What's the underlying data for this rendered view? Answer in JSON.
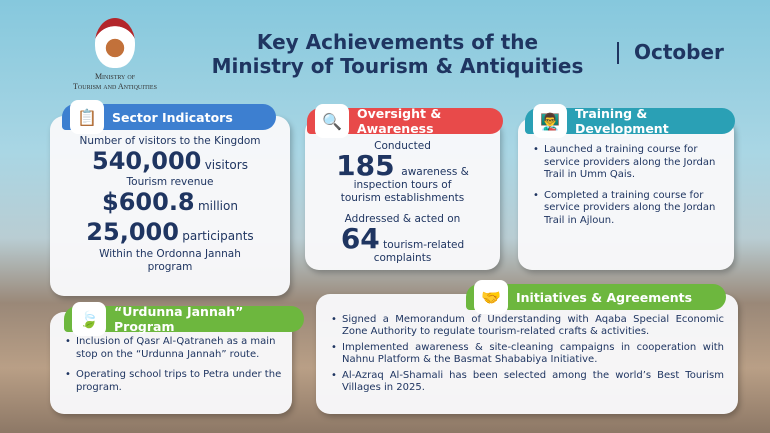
{
  "logo": {
    "line1": "Ministry of",
    "line2": "Tourism and Antiquities"
  },
  "header": {
    "title_line1": "Key Achievements of the",
    "title_line2": "Ministry of Tourism & Antiquities",
    "month": "October"
  },
  "colors": {
    "navy": "#1f3561",
    "sector": "#3d7fd0",
    "oversight": "#e84a4a",
    "training": "#2aa0b5",
    "green": "#6db73e"
  },
  "sector": {
    "title": "Sector Indicators",
    "icon": "clipboard-icon",
    "visitors_label": "Number of visitors to the Kingdom",
    "visitors_value": "540,000",
    "visitors_unit": "visitors",
    "revenue_label": "Tourism revenue",
    "revenue_value": "$600.8",
    "revenue_unit": "million",
    "participants_value": "25,000",
    "participants_unit": "participants",
    "participants_note": "Within the Ordonna Jannah program"
  },
  "oversight": {
    "title": "Oversight & Awareness",
    "icon": "inspection-icon",
    "line1": "Conducted",
    "value1": "185",
    "text1a": "awareness &",
    "text1b": "inspection tours of",
    "text1c": "tourism establishments",
    "line2": "Addressed & acted on",
    "value2": "64",
    "text2a": "tourism-related",
    "text2b": "complaints"
  },
  "training": {
    "title": "Training & Development",
    "icon": "presentation-icon",
    "items": [
      "Launched a training course for service providers along the Jordan Trail in Umm Qais.",
      "Completed a training course for service providers along the Jordan Trail in Ajloun."
    ]
  },
  "urdunna": {
    "title": "“Urdunna Jannah” Program",
    "icon": "leaf-icon",
    "items": [
      "Inclusion of Qasr Al-Qatraneh as a main stop on the “Urdunna Jannah” route.",
      "Operating school trips to Petra under the program."
    ]
  },
  "initiatives": {
    "title": "Initiatives & Agreements",
    "icon": "handshake-icon",
    "items": [
      "Signed a Memorandum of Understanding with Aqaba Special Economic Zone Authority to regulate tourism-related crafts & activities.",
      "Implemented awareness & site-cleaning campaigns in cooperation with Nahnu Platform & the Basmat Shababiya Initiative.",
      "Al-Azraq Al-Shamali has been selected among the world’s Best Tourism Villages in 2025."
    ]
  }
}
